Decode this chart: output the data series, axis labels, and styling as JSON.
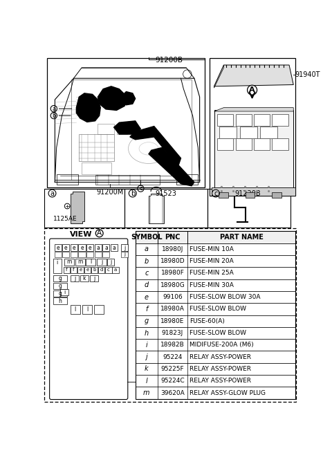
{
  "bg_color": "#ffffff",
  "table_headers": [
    "SYMBOL",
    "PNC",
    "PART NAME"
  ],
  "table_rows": [
    [
      "a",
      "18980J",
      "FUSE-MIN 10A"
    ],
    [
      "b",
      "18980D",
      "FUSE-MIN 20A"
    ],
    [
      "c",
      "18980F",
      "FUSE-MIN 25A"
    ],
    [
      "d",
      "18980G",
      "FUSE-MIN 30A"
    ],
    [
      "e",
      "99106",
      "FUSE-SLOW BLOW 30A"
    ],
    [
      "f",
      "18980A",
      "FUSE-SLOW BLOW"
    ],
    [
      "g",
      "18980E",
      "FUSE-60(A)"
    ],
    [
      "h",
      "91823J",
      "FUSE-SLOW BLOW"
    ],
    [
      "i",
      "18982B",
      "MIDIFUSE-200A (M6)"
    ],
    [
      "j",
      "95224",
      "RELAY ASSY-POWER"
    ],
    [
      "k",
      "95225F",
      "RELAY ASSY-POWER"
    ],
    [
      "l",
      "95224C",
      "RELAY ASSY-POWER"
    ],
    [
      "m",
      "39620A",
      "RELAY ASSY-GLOW PLUG"
    ]
  ],
  "view_a_label": "VIEW",
  "label_91200B": "91200B",
  "label_91200M": "91200M",
  "label_91940T": "91940T",
  "label_91523": "91523",
  "label_91220B": "91220B",
  "label_1125AE": "1125AE"
}
